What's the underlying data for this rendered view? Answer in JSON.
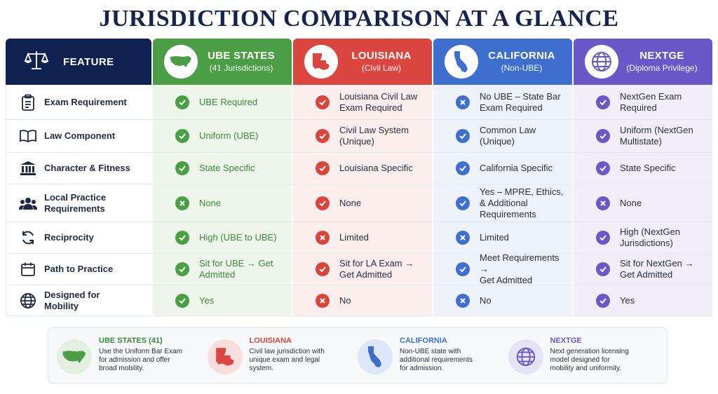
{
  "title": "JURISDICTION COMPARISON AT A GLANCE",
  "header": {
    "feature": "FEATURE",
    "columns": [
      {
        "name": "UBE STATES",
        "sub": "(41 Jurisdictions)"
      },
      {
        "name": "LOUISIANA",
        "sub": "(Civil Law)"
      },
      {
        "name": "CALIFORNIA",
        "sub": "(Non-UBE)"
      },
      {
        "name": "NEXTGE",
        "sub": "(Diploma Privilege)"
      }
    ]
  },
  "rows": [
    {
      "feature": "Exam Requirement",
      "icon": "clipboard-icon",
      "cells": [
        {
          "mark": "check",
          "text": "UBE Required"
        },
        {
          "mark": "check",
          "text": "Louisiana Civil Law\nExam Required"
        },
        {
          "mark": "cross",
          "text": "No UBE – State Bar\nExam Required"
        },
        {
          "mark": "check",
          "text": "NextGen Exam\nRequired"
        }
      ]
    },
    {
      "feature": "Law Component",
      "icon": "book-icon",
      "cells": [
        {
          "mark": "check",
          "text": "Uniform (UBE)"
        },
        {
          "mark": "check",
          "text": "Civil Law System\n(Unique)"
        },
        {
          "mark": "check",
          "text": "Common Law\n(Unique)"
        },
        {
          "mark": "check",
          "text": "Uniform (NextGen\nMultistate)"
        }
      ]
    },
    {
      "feature": "Character & Fitness",
      "icon": "courthouse-icon",
      "cells": [
        {
          "mark": "check",
          "text": "State Specific"
        },
        {
          "mark": "check",
          "text": "Louisiana Specific"
        },
        {
          "mark": "check",
          "text": "California Specific"
        },
        {
          "mark": "check",
          "text": "State Specific"
        }
      ]
    },
    {
      "feature": "Local Practice\nRequirements",
      "icon": "people-icon",
      "cells": [
        {
          "mark": "cross",
          "text": "None"
        },
        {
          "mark": "check",
          "text": "None"
        },
        {
          "mark": "check",
          "text": "Yes – MPRE, Ethics,\n& Additional\nRequirements"
        },
        {
          "mark": "cross",
          "text": "None"
        }
      ]
    },
    {
      "feature": "Reciprocity",
      "icon": "refresh-icon",
      "cells": [
        {
          "mark": "check",
          "text": "High (UBE to UBE)"
        },
        {
          "mark": "cross",
          "text": "Limited"
        },
        {
          "mark": "cross",
          "text": "Limited"
        },
        {
          "mark": "check",
          "text": "High (NextGen\nJurisdictions)"
        }
      ]
    },
    {
      "feature": "Path to Practice",
      "icon": "calendar-icon",
      "cells": [
        {
          "mark": "check",
          "text": "Sit for UBE → Get\nAdmitted"
        },
        {
          "mark": "check",
          "text": "Sit for LA Exam →\nGet Admitted"
        },
        {
          "mark": "check",
          "text": "Meet Requirements →\nGet Admitted"
        },
        {
          "mark": "check",
          "text": "Sit for NextGen →\nGet Admitted"
        }
      ]
    },
    {
      "feature": "Designed for\nMobility",
      "icon": "globe-icon",
      "cells": [
        {
          "mark": "check",
          "text": "Yes"
        },
        {
          "mark": "cross",
          "text": "No"
        },
        {
          "mark": "cross",
          "text": "No"
        },
        {
          "mark": "check",
          "text": "Yes"
        }
      ]
    }
  ],
  "legend": [
    {
      "title": "UBE STATES (41)",
      "desc": "Use the Uniform Bar Exam\nfor admission and offer\nbroad mobility.",
      "color": "#3d8a3a"
    },
    {
      "title": "LOUISIANA",
      "desc": "Civil law jurisdiction with\nunique exam and legal\nsystem.",
      "color": "#d9443d"
    },
    {
      "title": "CALIFORNIA",
      "desc": "Non-UBE state with\nadditional requirements\nfor admission.",
      "color": "#3f6fcf"
    },
    {
      "title": "NEXTGE",
      "desc": "Next generation licensing\nmodel designed for\nmobility and uniformity.",
      "color": "#6b58c8"
    }
  ],
  "colors": {
    "ube": "#4b9e46",
    "louisiana": "#db4740",
    "california": "#3e6fcf",
    "nextgen": "#6b58c8",
    "navy": "#0f2150"
  }
}
